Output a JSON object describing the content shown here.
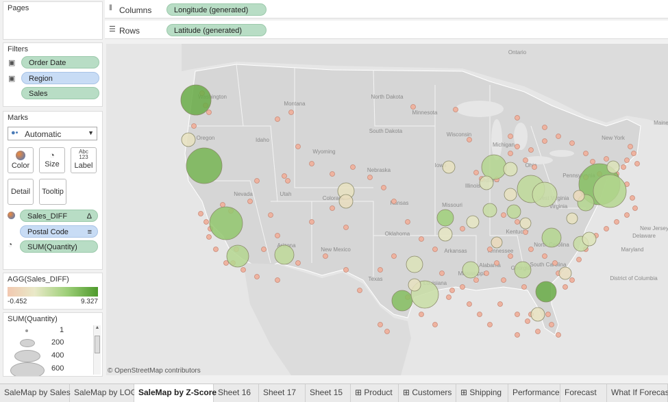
{
  "pages": {
    "title": "Pages"
  },
  "shelves": {
    "columns_label": "Columns",
    "columns_pill": "Longitude (generated)",
    "rows_label": "Rows",
    "rows_pill": "Latitude (generated)"
  },
  "filters": {
    "title": "Filters",
    "items": [
      "Order Date",
      "Region",
      "Sales"
    ]
  },
  "marks": {
    "title": "Marks",
    "type": "Automatic",
    "buttons": {
      "color": "Color",
      "size": "Size",
      "label": "Label",
      "detail": "Detail",
      "tooltip": "Tooltip"
    },
    "label_icon_text": "Abc\n123",
    "fields": [
      "Sales_DIFF",
      "Postal Code",
      "SUM(Quantity)"
    ],
    "delta": "Δ"
  },
  "color_legend": {
    "title": "AGG(Sales_DIFF)",
    "min": "-0.452",
    "max": "9.327",
    "color_low": "#f2c8b0",
    "color_high": "#4e9a2c"
  },
  "size_legend": {
    "title": "SUM(Quantity)",
    "values": [
      "1",
      "200",
      "400",
      "600"
    ]
  },
  "map": {
    "attribution": "© OpenStreetMap contributors",
    "labels": [
      "Ontario",
      "North Dakota",
      "Montana",
      "Minnesota",
      "Wisconsin",
      "South Dakota",
      "Idaho",
      "Wyoming",
      "Nebraska",
      "Iowa",
      "Maine",
      "New York",
      "Nevada",
      "Utah",
      "Colorado",
      "Kansas",
      "Missouri",
      "Illinois",
      "Pennsylvania",
      "West Virginia",
      "Virginia",
      "Kentucky",
      "Tennessee",
      "Oklahoma",
      "Arkansas",
      "Arizona",
      "New Mexico",
      "Texas",
      "Louisiana",
      "Mississippi",
      "Alabama",
      "Georgia",
      "North Carolina",
      "South Carolina",
      "Delaware",
      "Maryland",
      "New Jersey",
      "District of Columbia",
      "Oregon",
      "Washington",
      "Ohio",
      "Indiana",
      "Michigan"
    ]
  },
  "tabs": [
    {
      "label": "SaleMap by Sales",
      "active": false
    },
    {
      "label": "SaleMap by LOG",
      "active": false
    },
    {
      "label": "SaleMap by Z-Score",
      "active": true
    },
    {
      "label": "Sheet 16",
      "active": false
    },
    {
      "label": "Sheet 17",
      "active": false
    },
    {
      "label": "Sheet 15",
      "active": false
    },
    {
      "label": "Product",
      "active": false,
      "icon": "grid-icon"
    },
    {
      "label": "Customers",
      "active": false,
      "icon": "grid-icon"
    },
    {
      "label": "Shipping",
      "active": false,
      "icon": "grid-icon"
    },
    {
      "label": "Performance",
      "active": false
    },
    {
      "label": "Forecast",
      "active": false
    },
    {
      "label": "What If Forecast",
      "active": false
    }
  ]
}
